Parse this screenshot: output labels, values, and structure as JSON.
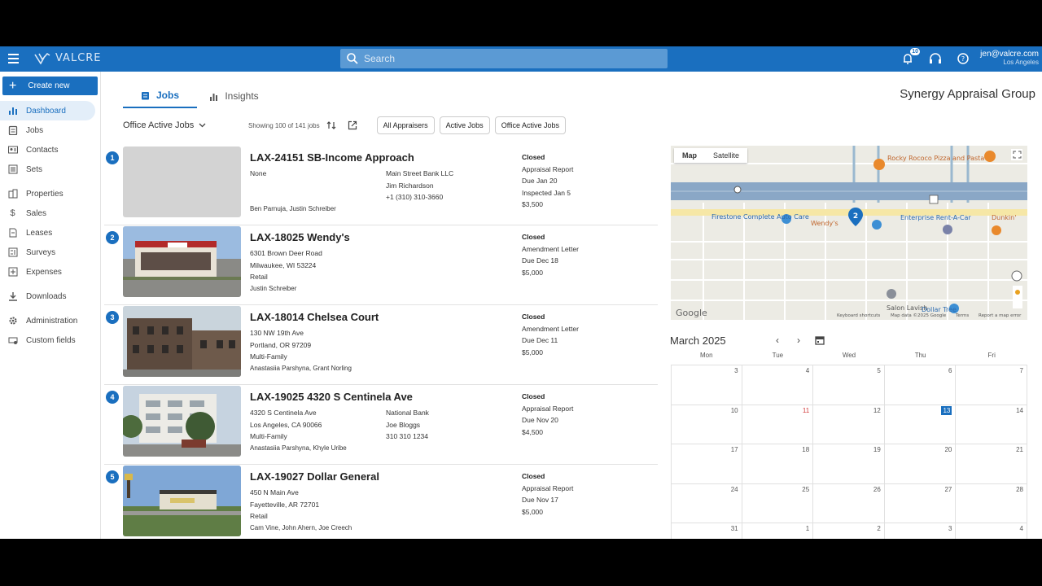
{
  "header": {
    "brand": "VALCRE",
    "search_placeholder": "Search",
    "notification_count": "10",
    "user_email": "jen@valcre.com",
    "user_location": "Los Angeles"
  },
  "sidebar": {
    "create_label": "Create new",
    "items": [
      {
        "label": "Dashboard",
        "icon": "bar-chart-icon"
      },
      {
        "label": "Jobs",
        "icon": "clipboard-icon"
      },
      {
        "label": "Contacts",
        "icon": "contact-card-icon"
      },
      {
        "label": "Sets",
        "icon": "list-icon"
      },
      {
        "label": "Properties",
        "icon": "building-icon"
      },
      {
        "label": "Sales",
        "icon": "dollar-icon"
      },
      {
        "label": "Leases",
        "icon": "document-icon"
      },
      {
        "label": "Surveys",
        "icon": "survey-icon"
      },
      {
        "label": "Expenses",
        "icon": "expense-icon"
      },
      {
        "label": "Downloads",
        "icon": "download-icon"
      },
      {
        "label": "Administration",
        "icon": "gear-icon"
      },
      {
        "label": "Custom fields",
        "icon": "custom-fields-icon"
      }
    ]
  },
  "main": {
    "tabs": [
      {
        "label": "Jobs"
      },
      {
        "label": "Insights"
      }
    ],
    "company": "Synergy Appraisal Group",
    "view_name": "Office Active Jobs",
    "showing": "Showing 100 of 141 jobs",
    "chips": [
      "All Appraisers",
      "Active Jobs",
      "Office Active Jobs"
    ]
  },
  "jobs": [
    {
      "num": "1",
      "title": "LAX-24151 SB-Income Approach",
      "c1": [
        "None",
        "",
        ""
      ],
      "c2": [
        "Main Street Bank LLC",
        "Jim Richardson",
        "+1 (310) 310-3660"
      ],
      "people": "Ben Parnuja, Justin Schreiber",
      "status": "Closed",
      "s": [
        "Appraisal Report",
        "Due Jan 20",
        "Inspected Jan 5",
        "$3,500"
      ]
    },
    {
      "num": "2",
      "title": "LAX-18025 Wendy's",
      "c1": [
        "6301 Brown Deer Road",
        "Milwaukee, WI 53224",
        "Retail"
      ],
      "c2": [
        "",
        "",
        ""
      ],
      "people": "Justin Schreiber",
      "status": "Closed",
      "s": [
        "Amendment Letter",
        "Due Dec 18",
        "$5,000",
        ""
      ]
    },
    {
      "num": "3",
      "title": "LAX-18014 Chelsea Court",
      "c1": [
        "130 NW 19th Ave",
        "Portland, OR 97209",
        "Multi-Family"
      ],
      "c2": [
        "",
        "",
        ""
      ],
      "people": "Anastasiia Parshyna, Grant Norling",
      "status": "Closed",
      "s": [
        "Amendment Letter",
        "Due Dec 11",
        "$5,000",
        ""
      ]
    },
    {
      "num": "4",
      "title": "LAX-19025 4320 S Centinela Ave",
      "c1": [
        "4320 S Centinela Ave",
        "Los Angeles, CA 90066",
        "Multi-Family"
      ],
      "c2": [
        "National Bank",
        "Joe Bloggs",
        "310 310 1234"
      ],
      "people": "Anastasiia Parshyna, Khyle Uribe",
      "status": "Closed",
      "s": [
        "Appraisal Report",
        "Due Nov 20",
        "$4,500",
        ""
      ]
    },
    {
      "num": "5",
      "title": "LAX-19027 Dollar General",
      "c1": [
        "450 N Main Ave",
        "Fayetteville, AR 72701",
        "Retail"
      ],
      "c2": [
        "",
        "",
        ""
      ],
      "people": "Cam Vine, John Ahern, Joe Creech",
      "status": "Closed",
      "s": [
        "Appraisal Report",
        "Due Nov 17",
        "$5,000",
        ""
      ]
    }
  ],
  "map": {
    "toggle": [
      "Map",
      "Satellite"
    ],
    "labels": [
      "Rocky Rococo Pizza and Pasta",
      "Firestone Complete Auto Care",
      "Wendy's",
      "Enterprise Rent-A-Car",
      "Dunkin'",
      "Salon Lavish",
      "Dollar Tree",
      "Google",
      "Keyboard shortcuts",
      "Map data ©2025 Google",
      "Terms",
      "Report a map error"
    ],
    "marker": "2"
  },
  "calendar": {
    "title": "March 2025",
    "dow": [
      "Mon",
      "Tue",
      "Wed",
      "Thu",
      "Fri"
    ],
    "weeks": [
      [
        "3",
        "4",
        "5",
        "6",
        "7"
      ],
      [
        "10",
        "11",
        "12",
        "13",
        "14"
      ],
      [
        "17",
        "18",
        "19",
        "20",
        "21"
      ],
      [
        "24",
        "25",
        "26",
        "27",
        "28"
      ],
      [
        "31",
        "1",
        "2",
        "3",
        "4"
      ]
    ],
    "today": "13"
  },
  "colors": {
    "primary": "#1a6fbf",
    "accent_red": "#d23b3b"
  }
}
